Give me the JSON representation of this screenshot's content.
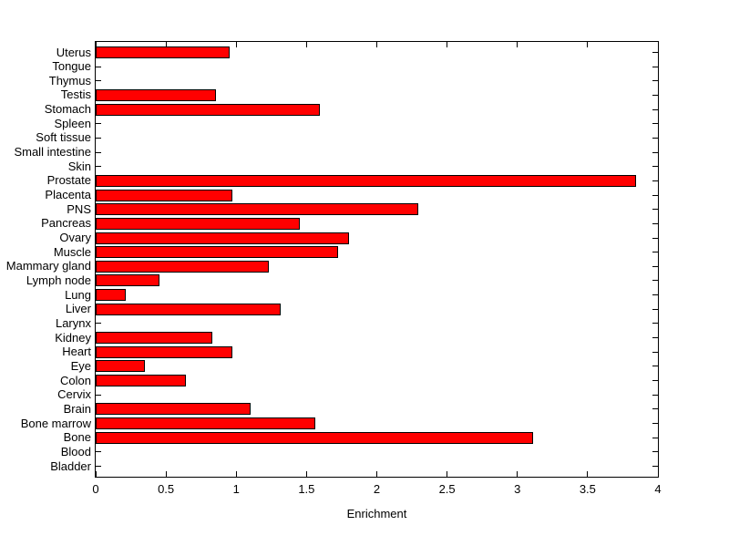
{
  "chart_data": {
    "type": "bar",
    "orientation": "horizontal",
    "title": "",
    "xlabel": "Enrichment",
    "ylabel": "",
    "xlim": [
      0,
      4
    ],
    "xticks": [
      0,
      0.5,
      1,
      1.5,
      2,
      2.5,
      3,
      3.5,
      4
    ],
    "xtick_labels": [
      "0",
      "0.5",
      "1",
      "1.5",
      "2",
      "2.5",
      "3",
      "3.5",
      "4"
    ],
    "grid": false,
    "legend_position": "none",
    "bar_fill": "#ff0000",
    "bar_edge": "#000000",
    "axis_color": "#000000",
    "background": "#ffffff",
    "categories": [
      "Uterus",
      "Tongue",
      "Thymus",
      "Testis",
      "Stomach",
      "Spleen",
      "Soft tissue",
      "Small intestine",
      "Skin",
      "Prostate",
      "Placenta",
      "PNS",
      "Pancreas",
      "Ovary",
      "Muscle",
      "Mammary gland",
      "Lymph node",
      "Lung",
      "Liver",
      "Larynx",
      "Kidney",
      "Heart",
      "Eye",
      "Colon",
      "Cervix",
      "Brain",
      "Bone marrow",
      "Bone",
      "Blood",
      "Bladder"
    ],
    "values": [
      0.94,
      0,
      0,
      0.84,
      1.58,
      0,
      0,
      0,
      0,
      3.83,
      0.96,
      2.28,
      1.44,
      1.79,
      1.71,
      1.22,
      0.44,
      0.2,
      1.3,
      0,
      0.82,
      0.96,
      0.34,
      0.63,
      0,
      1.09,
      1.55,
      3.1,
      0,
      0
    ]
  }
}
